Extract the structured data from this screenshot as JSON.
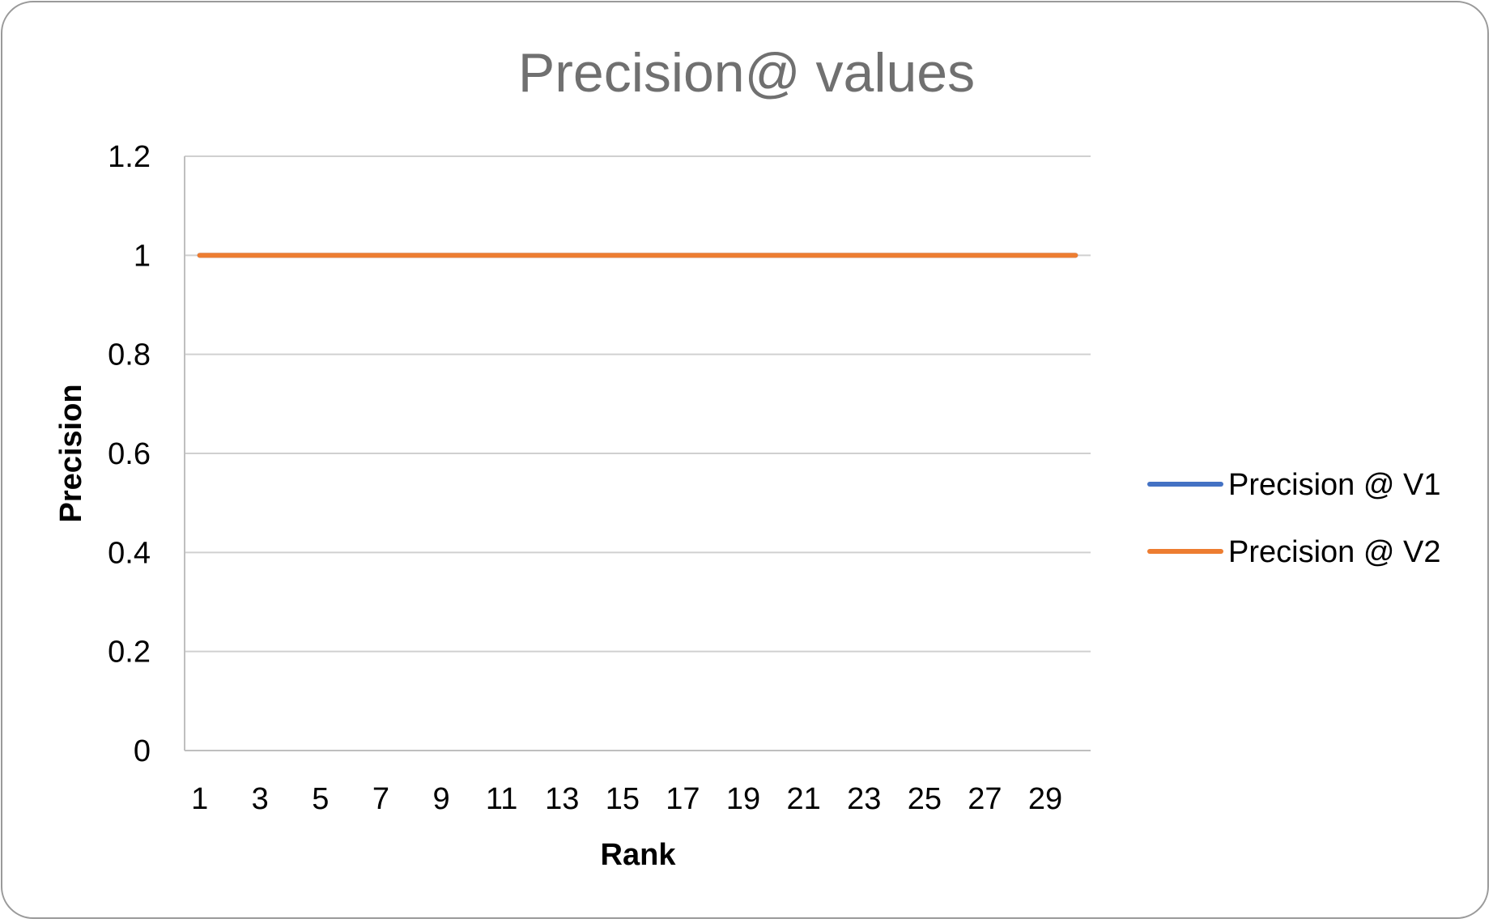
{
  "chart_data": {
    "type": "line",
    "title": "Precision@ values",
    "xlabel": "Rank",
    "ylabel": "Precision",
    "x": [
      1,
      2,
      3,
      4,
      5,
      6,
      7,
      8,
      9,
      10,
      11,
      12,
      13,
      14,
      15,
      16,
      17,
      18,
      19,
      20,
      21,
      22,
      23,
      24,
      25,
      26,
      27,
      28,
      29,
      30
    ],
    "x_tick_labels": [
      "1",
      "3",
      "5",
      "7",
      "9",
      "11",
      "13",
      "15",
      "17",
      "19",
      "21",
      "23",
      "25",
      "27",
      "29"
    ],
    "y_tick_labels": [
      "0",
      "0.2",
      "0.4",
      "0.6",
      "0.8",
      "1",
      "1.2"
    ],
    "ylim": [
      0,
      1.2
    ],
    "grid": true,
    "legend_position": "right",
    "series": [
      {
        "name": "Precision @ V1",
        "color": "#4472C4",
        "values": [
          1,
          1,
          1,
          1,
          1,
          1,
          1,
          1,
          1,
          1,
          1,
          1,
          1,
          1,
          1,
          1,
          1,
          1,
          1,
          1,
          1,
          1,
          1,
          1,
          1,
          1,
          1,
          1,
          1,
          1
        ]
      },
      {
        "name": "Precision @ V2",
        "color": "#ED7D31",
        "values": [
          1,
          1,
          1,
          1,
          1,
          1,
          1,
          1,
          1,
          1,
          1,
          1,
          1,
          1,
          1,
          1,
          1,
          1,
          1,
          1,
          1,
          1,
          1,
          1,
          1,
          1,
          1,
          1,
          1,
          1
        ]
      }
    ]
  }
}
